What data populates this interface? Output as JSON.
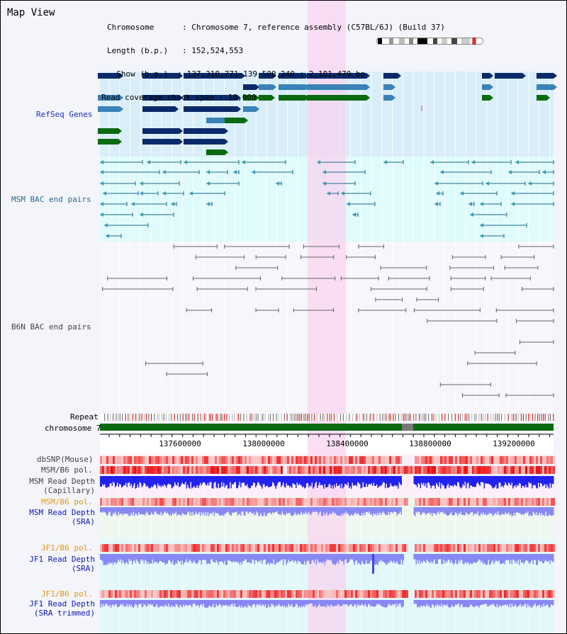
{
  "title": "Map View",
  "info": {
    "chromosome_label": "Chromosome",
    "chromosome_value": "Chromosome 7, reference assembly (C57BL/6J) (Build 37)",
    "length_label": "Length (b.p.)",
    "length_value": "152,524,553",
    "show_label": "Show (b.p.)",
    "show_value": "137,318,771-139,500,240 : 2,181,470 bp",
    "coverage_label": "Read coverage check span",
    "coverage_value": "10,000"
  },
  "tracks": {
    "refseq": "RefSeq Genes",
    "msm_bac": "MSM BAC end pairs",
    "b6n_bac": "B6N BAC end pairs",
    "repeat": "Repeat",
    "chromosome": "chromosome 7",
    "dbsnp": "dbSNP(Mouse)",
    "msm_b6_pol": "MSM/B6 pol.",
    "msm_depth_cap_1": "MSM Read Depth",
    "msm_depth_cap_2": "(Capillary)",
    "msm_b6_pol_2": "MSM/B6 pol.",
    "msm_depth_sra_1": "MSM Read Depth",
    "msm_depth_sra_2": "(SRA)",
    "jf1_b6_pol": "JF1/B6 pol.",
    "jf1_depth_sra_1": "JF1 Read Depth",
    "jf1_depth_sra_2": "(SRA)",
    "jf1_b6_pol_2": "JF1/B6 pol.",
    "jf1_depth_trim_1": "JF1 Read Depth",
    "jf1_depth_trim_2": "(SRA trimmed)"
  },
  "axis_ticks": [
    "137600000",
    "138000000",
    "138400000",
    "138800000",
    "139200000"
  ],
  "colors": {
    "refseq_bg": "#d9eef8",
    "msm_bg": "#dffbfb",
    "highlight": "#f8d4f0",
    "gene_dark": "#0a2a6a",
    "gene_mid": "#3a82b8",
    "gene_green": "#0a6a10",
    "bac_teal": "#1c6a8a",
    "bac_grey": "#666666",
    "chrom_green": "#0a6a10",
    "pol_red": "#ee2222",
    "depth_blue": "#2222ee",
    "depth_light": "#8888f4"
  }
}
